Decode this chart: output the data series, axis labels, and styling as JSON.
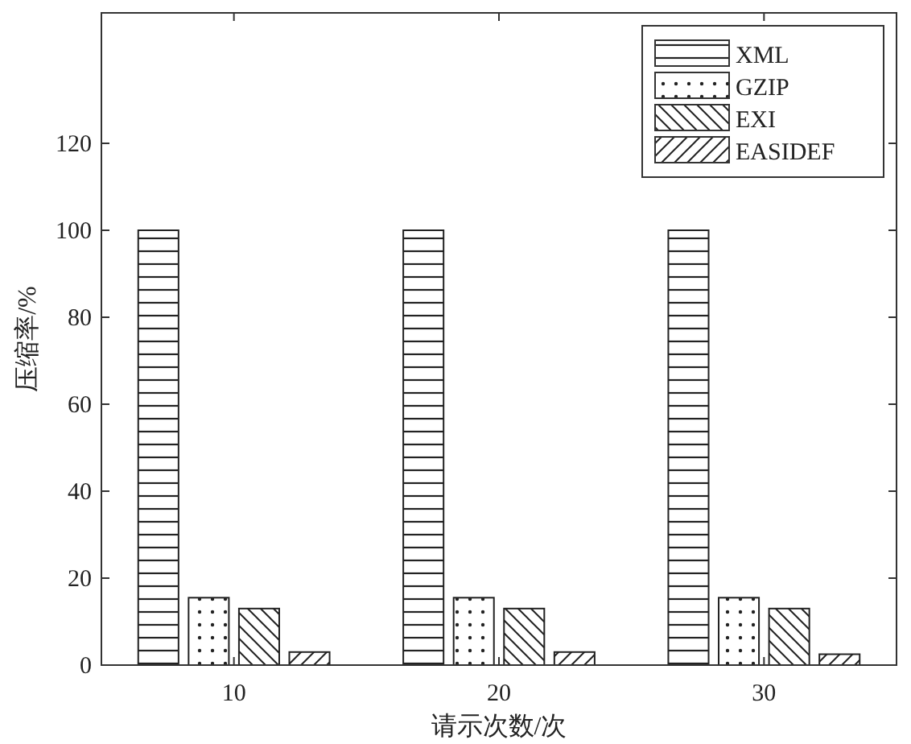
{
  "chart_data": {
    "type": "bar",
    "xlabel": "请示次数/次",
    "ylabel": "压缩率/%",
    "categories": [
      "10",
      "20",
      "30"
    ],
    "series": [
      {
        "name": "XML",
        "color": "#222222",
        "values": [
          100,
          100,
          100
        ]
      },
      {
        "name": "GZIP",
        "color": "#222222",
        "values": [
          15.5,
          15.5,
          15.5
        ]
      },
      {
        "name": "EXI",
        "color": "#222222",
        "values": [
          13,
          13,
          13
        ]
      },
      {
        "name": "EASIDEF",
        "color": "#222222",
        "values": [
          3,
          3,
          2.5
        ]
      }
    ],
    "ylim": [
      0,
      150
    ],
    "yticks": [
      0,
      20,
      40,
      60,
      80,
      100,
      120
    ],
    "grid": false,
    "legend": "top right"
  }
}
